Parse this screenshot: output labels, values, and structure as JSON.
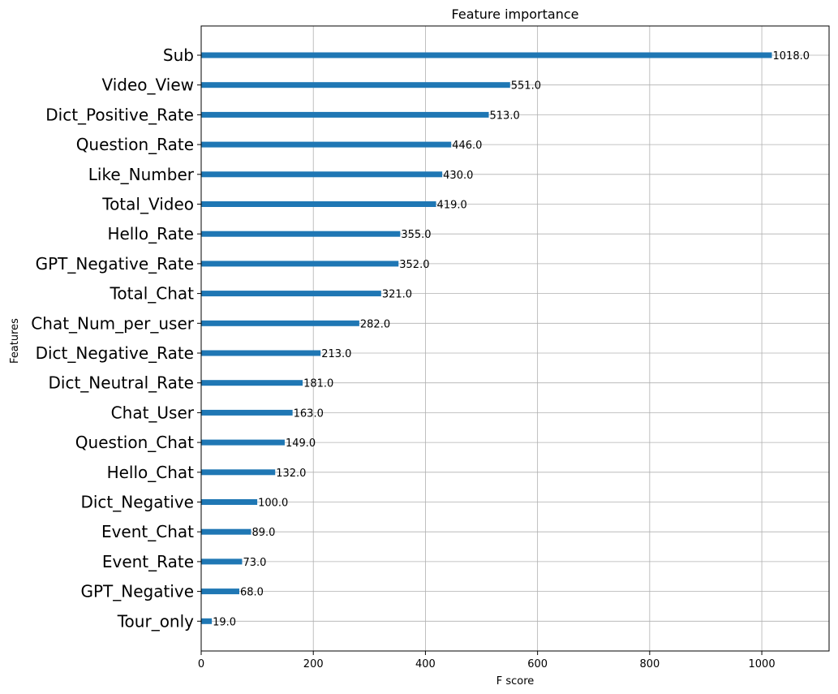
{
  "chart_data": {
    "type": "bar",
    "orientation": "horizontal",
    "title": "Feature importance",
    "xlabel": "F score",
    "ylabel": "Features",
    "xlim": [
      0,
      1120
    ],
    "xticks": [
      0,
      200,
      400,
      600,
      800,
      1000
    ],
    "grid": true,
    "bar_color": "#1f77b4",
    "categories": [
      "Sub",
      "Video_View",
      "Dict_Positive_Rate",
      "Question_Rate",
      "Like_Number",
      "Total_Video",
      "Hello_Rate",
      "GPT_Negative_Rate",
      "Total_Chat",
      "Chat_Num_per_user",
      "Dict_Negative_Rate",
      "Dict_Neutral_Rate",
      "Chat_User",
      "Question_Chat",
      "Hello_Chat",
      "Dict_Negative",
      "Event_Chat",
      "Event_Rate",
      "GPT_Negative",
      "Tour_only"
    ],
    "values": [
      1018,
      551,
      513,
      446,
      430,
      419,
      355,
      352,
      321,
      282,
      213,
      181,
      163,
      149,
      132,
      100,
      89,
      73,
      68,
      19
    ],
    "value_labels": [
      "1018.0",
      "551.0",
      "513.0",
      "446.0",
      "430.0",
      "419.0",
      "355.0",
      "352.0",
      "321.0",
      "282.0",
      "213.0",
      "181.0",
      "163.0",
      "149.0",
      "132.0",
      "100.0",
      "89.0",
      "73.0",
      "68.0",
      "19.0"
    ]
  }
}
